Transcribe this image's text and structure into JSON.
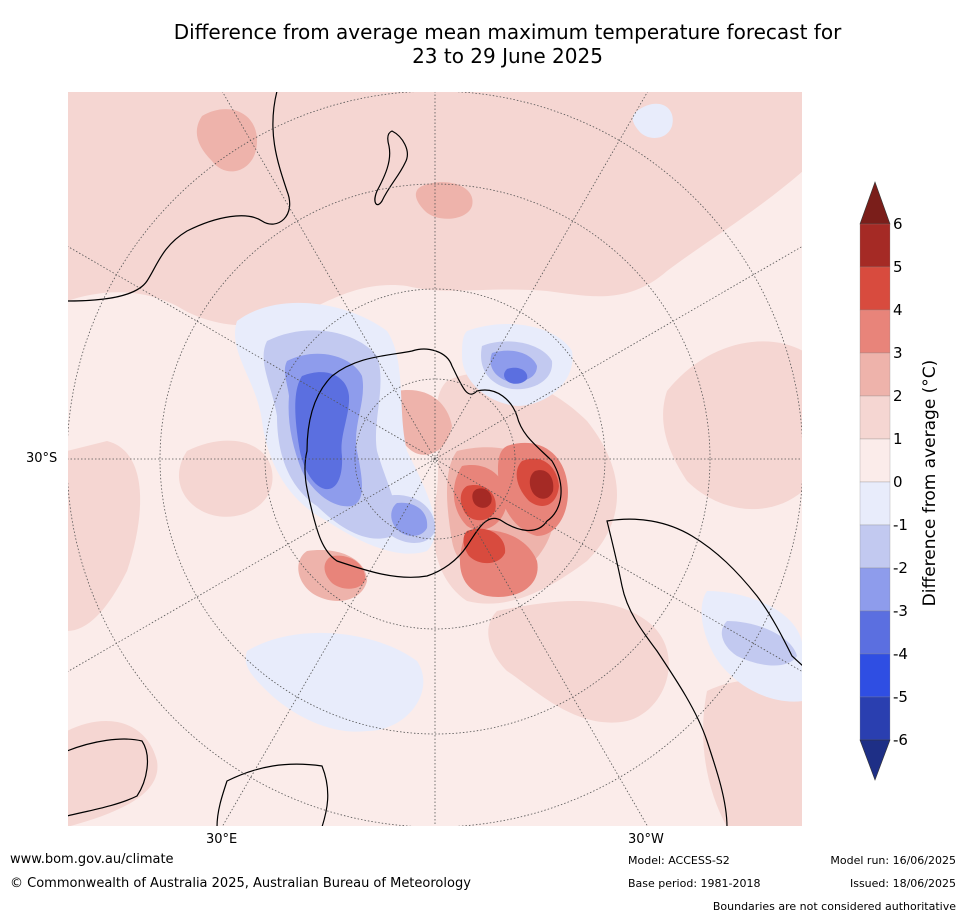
{
  "title": {
    "line1": "Difference from average mean maximum temperature forecast for",
    "line2": "23 to 29 June 2025"
  },
  "map": {
    "projection": "south-polar stereographic",
    "lat_label": "30°S",
    "lon_labels": [
      "30°E",
      "30°W"
    ],
    "grid_style": "dotted"
  },
  "colorbar": {
    "title": "Difference from average (°C)",
    "ticks": [
      "6",
      "5",
      "4",
      "3",
      "2",
      "1",
      "0",
      "-1",
      "-2",
      "-3",
      "-4",
      "-5",
      "-6"
    ],
    "levels_top_to_bottom": [
      "#a52a25",
      "#d84b3e",
      "#e8847a",
      "#eeb3ab",
      "#f5d6d2",
      "#fbecea",
      "#e8ecfb",
      "#c2c9f0",
      "#8e9cec",
      "#5b6fe0",
      "#2f4ee3",
      "#2a3fb0"
    ],
    "extend_top_color": "#7a1e1a",
    "extend_bottom_color": "#1e2f86"
  },
  "footer": {
    "website": "www.bom.gov.au/climate",
    "copyright": "© Commonwealth of Australia 2025, Australian Bureau of Meteorology",
    "model": "Model: ACCESS-S2",
    "base_period": "Base period: 1981-2018",
    "model_run": "Model run: 16/06/2025",
    "issued": "Issued: 18/06/2025",
    "disclaimer": "Boundaries are not considered authoritative"
  }
}
